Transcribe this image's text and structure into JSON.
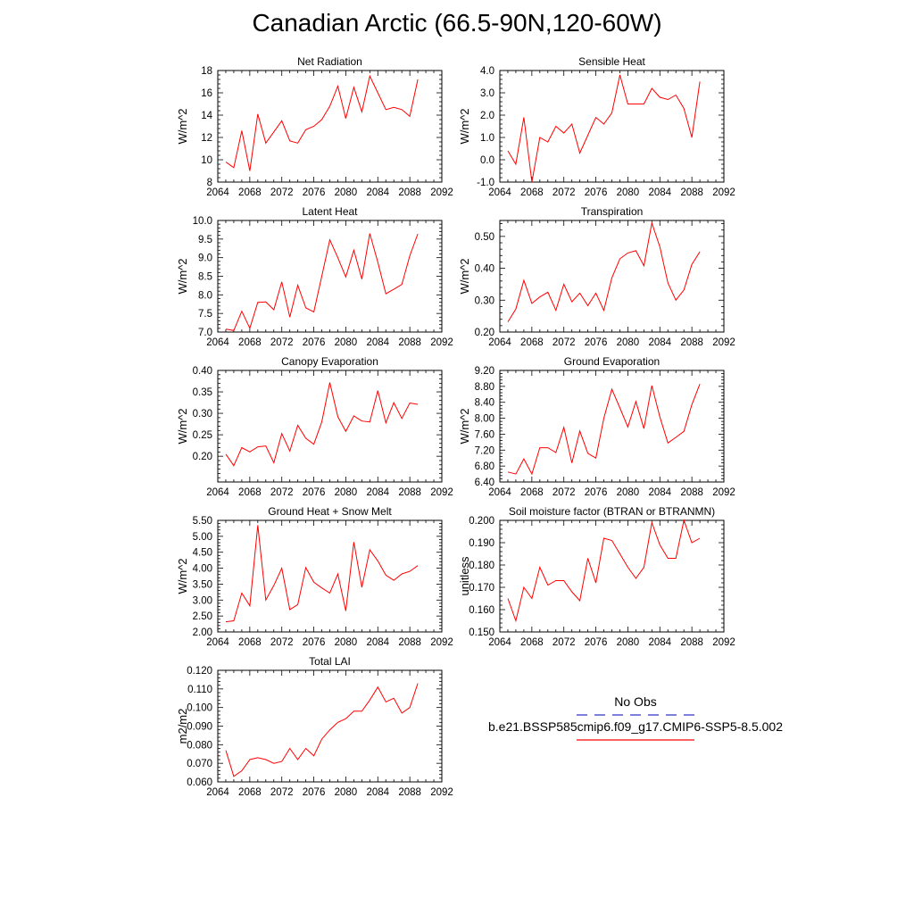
{
  "title": "Canadian Arctic (66.5-90N,120-60W)",
  "legend": {
    "entries": [
      {
        "name": "No Obs",
        "color": "#3333cc",
        "dash": "dashed"
      },
      {
        "name": "b.e21.BSSP585cmip6.f09_g17.CMIP6-SSP5-8.5.002",
        "color": "#ff0000",
        "dash": "solid"
      }
    ]
  },
  "chart_data": [
    {
      "type": "line",
      "title": "Net Radiation",
      "ylabel": "W/m^2",
      "xlabel": "",
      "xlim": [
        2064,
        2092
      ],
      "ylim": [
        8,
        18
      ],
      "xticks": [
        2064,
        2068,
        2072,
        2076,
        2080,
        2084,
        2088,
        2092
      ],
      "yticks": [
        8,
        10,
        12,
        14,
        16,
        18
      ],
      "ytick_labels": [
        "8",
        "10",
        "12",
        "14",
        "16",
        "18"
      ],
      "series": [
        {
          "color": "#ff0000",
          "x": [
            2065,
            2066,
            2067,
            2068,
            2069,
            2070,
            2071,
            2072,
            2073,
            2074,
            2075,
            2076,
            2077,
            2078,
            2079,
            2080,
            2081,
            2082,
            2083,
            2084,
            2085,
            2086,
            2087,
            2088,
            2089
          ],
          "y": [
            9.8,
            9.3,
            12.6,
            9.0,
            14.1,
            11.5,
            12.5,
            13.5,
            11.7,
            11.5,
            12.7,
            13.0,
            13.6,
            14.8,
            16.6,
            13.7,
            16.5,
            14.3,
            17.5,
            16.0,
            14.5,
            14.7,
            14.5,
            13.9,
            17.2
          ]
        }
      ]
    },
    {
      "type": "line",
      "title": "Sensible Heat",
      "ylabel": "W/m^2",
      "xlabel": "",
      "xlim": [
        2064,
        2092
      ],
      "ylim": [
        -1.0,
        4.0
      ],
      "xticks": [
        2064,
        2068,
        2072,
        2076,
        2080,
        2084,
        2088,
        2092
      ],
      "yticks": [
        -1,
        0,
        1,
        2,
        3,
        4
      ],
      "ytick_labels": [
        "-1.0",
        "0.0",
        "1.0",
        "2.0",
        "3.0",
        "4.0"
      ],
      "series": [
        {
          "color": "#ff0000",
          "x": [
            2065,
            2066,
            2067,
            2068,
            2069,
            2070,
            2071,
            2072,
            2073,
            2074,
            2075,
            2076,
            2077,
            2078,
            2079,
            2080,
            2081,
            2082,
            2083,
            2084,
            2085,
            2086,
            2087,
            2088,
            2089
          ],
          "y": [
            0.4,
            -0.2,
            1.9,
            -1.0,
            1.0,
            0.8,
            1.5,
            1.2,
            1.6,
            0.3,
            1.1,
            1.9,
            1.6,
            2.1,
            3.8,
            2.5,
            2.5,
            2.5,
            3.2,
            2.8,
            2.7,
            2.9,
            2.3,
            1.0,
            3.5
          ]
        }
      ]
    },
    {
      "type": "line",
      "title": "Latent Heat",
      "ylabel": "W/m^2",
      "xlabel": "",
      "xlim": [
        2064,
        2092
      ],
      "ylim": [
        7.0,
        10.0
      ],
      "xticks": [
        2064,
        2068,
        2072,
        2076,
        2080,
        2084,
        2088,
        2092
      ],
      "yticks": [
        7.0,
        7.5,
        8.0,
        8.5,
        9.0,
        9.5,
        10.0
      ],
      "ytick_labels": [
        "7.0",
        "7.5",
        "8.0",
        "8.5",
        "9.0",
        "9.5",
        "10.0"
      ],
      "series": [
        {
          "color": "#ff0000",
          "x": [
            2065,
            2066,
            2067,
            2068,
            2069,
            2070,
            2071,
            2072,
            2073,
            2074,
            2075,
            2076,
            2077,
            2078,
            2079,
            2080,
            2081,
            2082,
            2083,
            2084,
            2085,
            2086,
            2087,
            2088,
            2089
          ],
          "y": [
            7.08,
            7.04,
            7.56,
            7.1,
            7.8,
            7.81,
            7.6,
            8.35,
            7.4,
            8.26,
            7.65,
            7.54,
            8.5,
            9.48,
            9.0,
            8.48,
            9.2,
            8.42,
            9.65,
            8.88,
            8.03,
            8.15,
            8.28,
            9.05,
            9.64
          ]
        }
      ]
    },
    {
      "type": "line",
      "title": "Transpiration",
      "ylabel": "W/m^2",
      "xlabel": "",
      "xlim": [
        2064,
        2092
      ],
      "ylim": [
        0.2,
        0.55
      ],
      "xticks": [
        2064,
        2068,
        2072,
        2076,
        2080,
        2084,
        2088,
        2092
      ],
      "yticks": [
        0.2,
        0.3,
        0.4,
        0.5
      ],
      "ytick_labels": [
        "0.20",
        "0.30",
        "0.40",
        "0.50"
      ],
      "series": [
        {
          "color": "#ff0000",
          "x": [
            2065,
            2066,
            2067,
            2068,
            2069,
            2070,
            2071,
            2072,
            2073,
            2074,
            2075,
            2076,
            2077,
            2078,
            2079,
            2080,
            2081,
            2082,
            2083,
            2084,
            2085,
            2086,
            2087,
            2088,
            2089
          ],
          "y": [
            0.232,
            0.272,
            0.362,
            0.29,
            0.31,
            0.325,
            0.268,
            0.35,
            0.295,
            0.322,
            0.283,
            0.322,
            0.268,
            0.37,
            0.43,
            0.448,
            0.455,
            0.408,
            0.542,
            0.467,
            0.354,
            0.3,
            0.332,
            0.412,
            0.452
          ]
        }
      ]
    },
    {
      "type": "line",
      "title": "Canopy Evaporation",
      "ylabel": "W/m^2",
      "xlabel": "",
      "xlim": [
        2064,
        2092
      ],
      "ylim": [
        0.14,
        0.4
      ],
      "xticks": [
        2064,
        2068,
        2072,
        2076,
        2080,
        2084,
        2088,
        2092
      ],
      "yticks": [
        0.2,
        0.25,
        0.3,
        0.35,
        0.4
      ],
      "ytick_labels": [
        "0.20",
        "0.25",
        "0.30",
        "0.35",
        "0.40"
      ],
      "series": [
        {
          "color": "#ff0000",
          "x": [
            2065,
            2066,
            2067,
            2068,
            2069,
            2070,
            2071,
            2072,
            2073,
            2074,
            2075,
            2076,
            2077,
            2078,
            2079,
            2080,
            2081,
            2082,
            2083,
            2084,
            2085,
            2086,
            2087,
            2088,
            2089
          ],
          "y": [
            0.205,
            0.178,
            0.22,
            0.21,
            0.222,
            0.224,
            0.185,
            0.253,
            0.212,
            0.272,
            0.242,
            0.228,
            0.28,
            0.372,
            0.292,
            0.258,
            0.294,
            0.282,
            0.28,
            0.353,
            0.278,
            0.325,
            0.288,
            0.324,
            0.321
          ]
        }
      ]
    },
    {
      "type": "line",
      "title": "Ground Evaporation",
      "ylabel": "W/m^2",
      "xlabel": "",
      "xlim": [
        2064,
        2092
      ],
      "ylim": [
        6.4,
        9.2
      ],
      "xticks": [
        2064,
        2068,
        2072,
        2076,
        2080,
        2084,
        2088,
        2092
      ],
      "yticks": [
        6.4,
        6.8,
        7.2,
        7.6,
        8.0,
        8.4,
        8.8,
        9.2
      ],
      "ytick_labels": [
        "6.40",
        "6.80",
        "7.20",
        "7.60",
        "8.00",
        "8.40",
        "8.80",
        "9.20"
      ],
      "series": [
        {
          "color": "#ff0000",
          "x": [
            2065,
            2066,
            2067,
            2068,
            2069,
            2070,
            2071,
            2072,
            2073,
            2074,
            2075,
            2076,
            2077,
            2078,
            2079,
            2080,
            2081,
            2082,
            2083,
            2084,
            2085,
            2086,
            2087,
            2088,
            2089
          ],
          "y": [
            6.65,
            6.6,
            6.98,
            6.6,
            7.26,
            7.26,
            7.14,
            7.77,
            6.88,
            7.68,
            7.12,
            7.0,
            8.0,
            8.73,
            8.26,
            7.78,
            8.42,
            7.74,
            8.82,
            8.03,
            7.38,
            7.52,
            7.67,
            8.34,
            8.86
          ]
        }
      ]
    },
    {
      "type": "line",
      "title": "Ground Heat + Snow Melt",
      "ylabel": "W/m^2",
      "xlabel": "",
      "xlim": [
        2064,
        2092
      ],
      "ylim": [
        2.0,
        5.5
      ],
      "xticks": [
        2064,
        2068,
        2072,
        2076,
        2080,
        2084,
        2088,
        2092
      ],
      "yticks": [
        2.0,
        2.5,
        3.0,
        3.5,
        4.0,
        4.5,
        5.0,
        5.5
      ],
      "ytick_labels": [
        "2.00",
        "2.50",
        "3.00",
        "3.50",
        "4.00",
        "4.50",
        "5.00",
        "5.50"
      ],
      "series": [
        {
          "color": "#ff0000",
          "x": [
            2065,
            2066,
            2067,
            2068,
            2069,
            2070,
            2071,
            2072,
            2073,
            2074,
            2075,
            2076,
            2077,
            2078,
            2079,
            2080,
            2081,
            2082,
            2083,
            2084,
            2085,
            2086,
            2087,
            2088,
            2089
          ],
          "y": [
            2.32,
            2.35,
            3.22,
            2.82,
            5.35,
            3.0,
            3.46,
            4.0,
            2.7,
            2.86,
            4.02,
            3.56,
            3.38,
            3.22,
            3.82,
            2.66,
            4.82,
            3.4,
            4.58,
            4.23,
            3.78,
            3.62,
            3.82,
            3.9,
            4.08
          ]
        }
      ]
    },
    {
      "type": "line",
      "title": "Soil moisture factor (BTRAN or BTRANMN)",
      "ylabel": "unitless",
      "xlabel": "",
      "xlim": [
        2064,
        2092
      ],
      "ylim": [
        0.15,
        0.2
      ],
      "xticks": [
        2064,
        2068,
        2072,
        2076,
        2080,
        2084,
        2088,
        2092
      ],
      "yticks": [
        0.15,
        0.16,
        0.17,
        0.18,
        0.19,
        0.2
      ],
      "ytick_labels": [
        "0.150",
        "0.160",
        "0.170",
        "0.180",
        "0.190",
        "0.200"
      ],
      "series": [
        {
          "color": "#ff0000",
          "x": [
            2065,
            2066,
            2067,
            2068,
            2069,
            2070,
            2071,
            2072,
            2073,
            2074,
            2075,
            2076,
            2077,
            2078,
            2079,
            2080,
            2081,
            2082,
            2083,
            2084,
            2085,
            2086,
            2087,
            2088,
            2089
          ],
          "y": [
            0.165,
            0.155,
            0.17,
            0.165,
            0.179,
            0.171,
            0.173,
            0.173,
            0.168,
            0.164,
            0.183,
            0.172,
            0.192,
            0.191,
            0.185,
            0.179,
            0.174,
            0.179,
            0.199,
            0.189,
            0.183,
            0.183,
            0.2,
            0.19,
            0.192
          ]
        }
      ]
    },
    {
      "type": "line",
      "title": "Total LAI",
      "ylabel": "m2/m2",
      "xlabel": "",
      "xlim": [
        2064,
        2092
      ],
      "ylim": [
        0.06,
        0.12
      ],
      "xticks": [
        2064,
        2068,
        2072,
        2076,
        2080,
        2084,
        2088,
        2092
      ],
      "yticks": [
        0.06,
        0.07,
        0.08,
        0.09,
        0.1,
        0.11,
        0.12
      ],
      "ytick_labels": [
        "0.060",
        "0.070",
        "0.080",
        "0.090",
        "0.100",
        "0.110",
        "0.120"
      ],
      "series": [
        {
          "color": "#ff0000",
          "x": [
            2065,
            2066,
            2067,
            2068,
            2069,
            2070,
            2071,
            2072,
            2073,
            2074,
            2075,
            2076,
            2077,
            2078,
            2079,
            2080,
            2081,
            2082,
            2083,
            2084,
            2085,
            2086,
            2087,
            2088,
            2089
          ],
          "y": [
            0.077,
            0.063,
            0.066,
            0.072,
            0.073,
            0.072,
            0.07,
            0.071,
            0.078,
            0.072,
            0.078,
            0.074,
            0.083,
            0.088,
            0.092,
            0.094,
            0.098,
            0.098,
            0.104,
            0.111,
            0.103,
            0.105,
            0.097,
            0.1,
            0.113
          ]
        }
      ]
    }
  ]
}
